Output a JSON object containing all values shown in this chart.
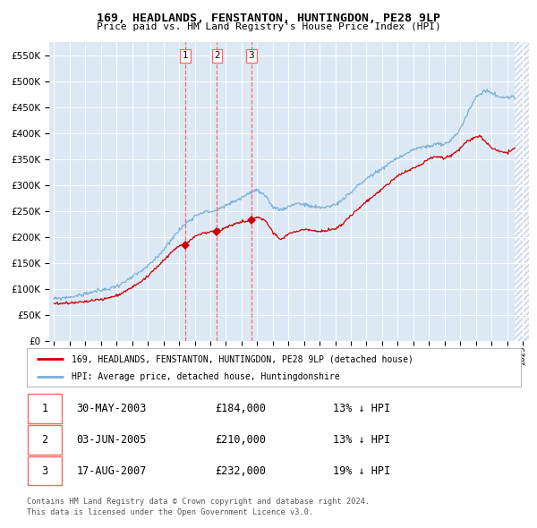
{
  "title": "169, HEADLANDS, FENSTANTON, HUNTINGDON, PE28 9LP",
  "subtitle": "Price paid vs. HM Land Registry's House Price Index (HPI)",
  "legend_red": "169, HEADLANDS, FENSTANTON, HUNTINGDON, PE28 9LP (detached house)",
  "legend_blue": "HPI: Average price, detached house, Huntingdonshire",
  "transactions": [
    {
      "num": 1,
      "date": "30-MAY-2003",
      "price": 184000,
      "pct": "13%",
      "dir": "↓",
      "x_year": 2003.42
    },
    {
      "num": 2,
      "date": "03-JUN-2005",
      "price": 210000,
      "pct": "13%",
      "dir": "↓",
      "x_year": 2005.43
    },
    {
      "num": 3,
      "date": "17-AUG-2007",
      "price": 232000,
      "pct": "19%",
      "dir": "↓",
      "x_year": 2007.63
    }
  ],
  "footer1": "Contains HM Land Registry data © Crown copyright and database right 2024.",
  "footer2": "This data is licensed under the Open Government Licence v3.0.",
  "ylim": [
    0,
    575000
  ],
  "xlim_start": 1994.7,
  "xlim_end": 2025.4,
  "background_color": "#dce9f5",
  "red_color": "#cc0000",
  "blue_color": "#7ab0d4",
  "dashed_color": "#ff6666",
  "hatch_color": "#c8d8e8",
  "hatch_start": 2024.5
}
